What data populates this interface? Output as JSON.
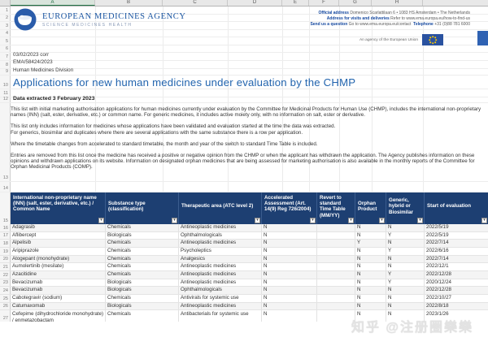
{
  "sheet": {
    "column_letters": [
      "A",
      "B",
      "C",
      "D",
      "E",
      "F",
      "G",
      "H"
    ],
    "row_numbers": [
      "1",
      "2",
      "3",
      "4",
      "5",
      "6",
      "7",
      "8",
      "9",
      "10",
      "11",
      "12",
      "13",
      "14",
      "15",
      "16",
      "17",
      "18",
      "19",
      "20",
      "21",
      "22",
      "23",
      "24",
      "25",
      "26",
      "27"
    ]
  },
  "branding": {
    "agency_name": "EUROPEAN MEDICINES AGENCY",
    "tagline": "SCIENCE MEDICINES HEALTH",
    "eu_note": "An agency of the European Union"
  },
  "contact": {
    "line1_label": "Official address",
    "line1_text": "Domenico Scarlattilaan 6  •  1083 HS Amsterdam  •  The Netherlands",
    "line2_label": "Address for visits and deliveries",
    "line2_text": "Refer to www.ema.europa.eu/how-to-find-us",
    "line3_label": "Send us a question",
    "line3_text": "Go to www.ema.europa.eu/contact",
    "line3_label2": "Telephone",
    "line3_text2": "+31 (0)88 781 6000"
  },
  "doc": {
    "corr_date": "03/02/2023 corr",
    "reference": "EMA/58424/2023",
    "division": "Human Medicines Division",
    "title": "Applications for new human medicines under evaluation by the CHMP",
    "subtitle": "Data extracted 3 February 2023",
    "paragraphs": [
      "This list with initial marketing authorisation applications for human medicines currently under evaluation by the Committee for Medicinal Products for Human Use (CHMP), includes the international non-proprietary names (INN) (salt, ester, derivative, etc.) or common name. For generic medicines, it includes active moiety only, with no information on salt, ester or derivative.",
      "This list only includes information for medicines whose applications have been validated and evaluation started at the time the data was extracted.\nFor generics, biosimilar and duplicates where there are several applications with the same substance there is a row per application.",
      "Where the timetable changes from accelerated to standard timetable, the month and year of the switch to standard Time Table is included.",
      "Entries are removed from this list once the medicine has received a positive or negative opinion from the CHMP or when the applicant has withdrawn the application. The Agency publishes information on these opinions and withdrawn applications on its website. Information on designated orphan medicines that are being assessed for marketing authorisation is also available in the monthly reports of the Committee for Orphan Medicinal Products (COMP)."
    ]
  },
  "table": {
    "columns": [
      "International non-proprietary name (INN) (salt, ester, derivative, etc.) / Common Name",
      "Substance type (classification)",
      "Therapeutic area (ATC level 2)",
      "Accelerated Assessment (Art. 14(9) Reg 726/2004)",
      "Revert to standard Time Table (MM/YY)",
      "Orphan Product",
      "Generic, hybrid or Biosimilar",
      "Start of evaluation"
    ],
    "rows": [
      [
        "Adagrasib",
        "Chemicals",
        "Antineoplastic medicines",
        "N",
        "",
        "N",
        "N",
        "2022/5/19"
      ],
      [
        "Aflibercept",
        "Biologicals",
        "Ophthalmologicals",
        "N",
        "",
        "N",
        "Y",
        "2022/5/19"
      ],
      [
        "Alpelisib",
        "Chemicals",
        "Antineoplastic medicines",
        "N",
        "",
        "Y",
        "N",
        "2022/7/14"
      ],
      [
        "Aripiprazole",
        "Chemicals",
        "Psycholeptics",
        "N",
        "",
        "N",
        "Y",
        "2022/6/16"
      ],
      [
        "Atogepant (monohydrate)",
        "Chemicals",
        "Analgesics",
        "N",
        "",
        "N",
        "N",
        "2022/7/14"
      ],
      [
        "Aumolertinib (mesilate)",
        "Chemicals",
        "Antineoplastic medicines",
        "N",
        "",
        "N",
        "N",
        "2022/12/1"
      ],
      [
        "Azacitidine",
        "Chemicals",
        "Antineoplastic medicines",
        "N",
        "",
        "N",
        "Y",
        "2022/12/28"
      ],
      [
        "Bevacizumab",
        "Biologicals",
        "Antineoplastic medicines",
        "N",
        "",
        "N",
        "Y",
        "2020/12/24"
      ],
      [
        "Bevacizumab",
        "Biologicals",
        "Ophthalmologicals",
        "N",
        "",
        "N",
        "N",
        "2022/12/28"
      ],
      [
        "Cabotegravir (sodium)",
        "Chemicals",
        "Antivirals for systemic use",
        "N",
        "",
        "N",
        "N",
        "2022/10/27"
      ],
      [
        "Catumaxomab",
        "Biologicals",
        "Antineoplastic medicines",
        "N",
        "",
        "N",
        "N",
        "2022/8/18"
      ],
      [
        "Cefepime (dihydrochloride monohydrate) / enmetazobactam",
        "Chemicals",
        "Antibacterials for systemic use",
        "N",
        "",
        "N",
        "N",
        "2023/1/26"
      ]
    ]
  },
  "icons": {
    "filter_arrow": "▾"
  },
  "watermark": "知乎 @注册圈樂樂",
  "colors": {
    "table_header_bg": "#1d3f72",
    "title_blue": "#2264ae",
    "brand_blue": "#1b56a2",
    "eu_flag_blue": "#2a52a0",
    "star_yellow": "#ffcc00"
  }
}
